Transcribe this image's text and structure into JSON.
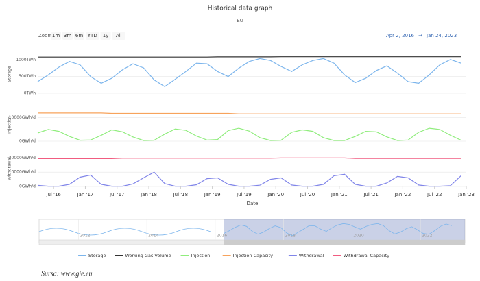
{
  "chart_data": {
    "type": "line",
    "title": "Historical data graph",
    "subtitle": "EU",
    "zoom_label": "Zoom",
    "zoom_buttons": [
      "1m",
      "3m",
      "6m",
      "YTD",
      "1y",
      "All"
    ],
    "range_from": "Apr 2, 2016",
    "range_separator": "→",
    "range_to": "Jan 24, 2023",
    "xlabel": "Date",
    "x": [
      "2016-04",
      "2016-06",
      "2016-08",
      "2016-10",
      "2016-12",
      "2017-02",
      "2017-04",
      "2017-06",
      "2017-08",
      "2017-10",
      "2017-12",
      "2018-02",
      "2018-04",
      "2018-06",
      "2018-08",
      "2018-10",
      "2018-12",
      "2019-02",
      "2019-04",
      "2019-06",
      "2019-08",
      "2019-10",
      "2019-12",
      "2020-02",
      "2020-04",
      "2020-06",
      "2020-08",
      "2020-10",
      "2020-12",
      "2021-02",
      "2021-04",
      "2021-06",
      "2021-08",
      "2021-10",
      "2021-12",
      "2022-02",
      "2022-04",
      "2022-06",
      "2022-08",
      "2022-10",
      "2022-12"
    ],
    "xlim": [
      "2016-04",
      "2023-01"
    ],
    "xticks": [
      {
        "value": "2016-07",
        "label": "Jul '16"
      },
      {
        "value": "2017-01",
        "label": "Jan '17"
      },
      {
        "value": "2017-07",
        "label": "Jul '17"
      },
      {
        "value": "2018-01",
        "label": "Jan '18"
      },
      {
        "value": "2018-07",
        "label": "Jul '18"
      },
      {
        "value": "2019-01",
        "label": "Jan '19"
      },
      {
        "value": "2019-07",
        "label": "Jul '19"
      },
      {
        "value": "2020-01",
        "label": "Jan '20"
      },
      {
        "value": "2020-07",
        "label": "Jul '20"
      },
      {
        "value": "2021-01",
        "label": "Jan '21"
      },
      {
        "value": "2021-07",
        "label": "Jul '21"
      },
      {
        "value": "2022-01",
        "label": "Jan '22"
      },
      {
        "value": "2022-07",
        "label": "Jul '22"
      },
      {
        "value": "2023-01",
        "label": "Jan '23"
      }
    ],
    "panels": [
      {
        "ylabel": "Storage",
        "ylim": [
          0,
          1150
        ],
        "yticks": [
          {
            "value": 0,
            "label": "0TWh"
          },
          {
            "value": 500,
            "label": "500TWh"
          },
          {
            "value": 1000,
            "label": "1000TWh"
          }
        ],
        "series": [
          {
            "name": "Storage",
            "color": "#7cb5ec",
            "values": [
              350,
              550,
              780,
              950,
              850,
              500,
              300,
              450,
              700,
              880,
              760,
              400,
              200,
              420,
              650,
              900,
              880,
              650,
              500,
              750,
              950,
              1040,
              980,
              800,
              650,
              850,
              980,
              1040,
              900,
              550,
              320,
              450,
              680,
              820,
              600,
              350,
              300,
              550,
              850,
              1010,
              900
            ]
          },
          {
            "name": "Working Gas Volume",
            "color": "#333333",
            "values": [
              1085,
              1085,
              1085,
              1085,
              1085,
              1085,
              1085,
              1085,
              1085,
              1085,
              1085,
              1085,
              1085,
              1085,
              1085,
              1085,
              1085,
              1090,
              1090,
              1090,
              1090,
              1090,
              1090,
              1095,
              1095,
              1095,
              1095,
              1095,
              1095,
              1095,
              1095,
              1095,
              1095,
              1095,
              1095,
              1095,
              1095,
              1095,
              1095,
              1095,
              1095
            ]
          }
        ]
      },
      {
        "ylabel": "Injection",
        "ylim": [
          0,
          14000
        ],
        "yticks": [
          {
            "value": 0,
            "label": "0GWh/d"
          },
          {
            "value": 10000,
            "label": "10000GWh/d"
          }
        ],
        "series": [
          {
            "name": "Injection",
            "color": "#90ed7d",
            "values": [
              3500,
              5000,
              4200,
              2000,
              400,
              500,
              2500,
              4800,
              4000,
              1800,
              300,
              400,
              3000,
              5200,
              4600,
              2200,
              500,
              700,
              4500,
              5500,
              4300,
              1500,
              300,
              400,
              3800,
              4800,
              4200,
              1500,
              300,
              300,
              2000,
              4200,
              4000,
              1800,
              300,
              500,
              3800,
              5500,
              5000,
              2500,
              400
            ]
          },
          {
            "name": "Injection Capacity",
            "color": "#f7a35c",
            "values": [
              12000,
              12000,
              12000,
              12000,
              12000,
              12000,
              12000,
              11800,
              11800,
              11800,
              11800,
              11800,
              11800,
              11800,
              11800,
              11800,
              11800,
              11800,
              11800,
              11600,
              11600,
              11600,
              11600,
              11600,
              11600,
              11600,
              11600,
              11600,
              11600,
              11600,
              11600,
              11600,
              11600,
              11600,
              11600,
              11600,
              11600,
              11600,
              11600,
              11600,
              11600
            ]
          }
        ]
      },
      {
        "ylabel": "Withdrawal",
        "ylim": [
          0,
          25000
        ],
        "yticks": [
          {
            "value": 0,
            "label": "0GWh/d"
          },
          {
            "value": 10000,
            "label": "10000GWh/d"
          },
          {
            "value": 20000,
            "label": "20000GWh/d"
          }
        ],
        "series": [
          {
            "name": "Withdrawal",
            "color": "#8085e9",
            "values": [
              800,
              200,
              200,
              1500,
              6500,
              8000,
              1500,
              200,
              200,
              1800,
              6000,
              10000,
              2000,
              200,
              200,
              1200,
              5500,
              6000,
              1500,
              200,
              200,
              900,
              5000,
              6000,
              1000,
              200,
              200,
              1500,
              7500,
              8500,
              1500,
              200,
              200,
              2500,
              7000,
              6000,
              1000,
              200,
              200,
              600,
              7500
            ]
          },
          {
            "name": "Withdrawal Capacity",
            "color": "#f15c80",
            "values": [
              19500,
              19500,
              19500,
              19500,
              19500,
              19500,
              19500,
              19500,
              19800,
              19800,
              19800,
              19800,
              19800,
              19800,
              19800,
              19800,
              19800,
              19800,
              19800,
              19800,
              19800,
              19800,
              19800,
              20000,
              20000,
              20000,
              20000,
              20000,
              20000,
              20000,
              19600,
              19600,
              19600,
              19600,
              19600,
              19600,
              19600,
              19600,
              19600,
              19600,
              19600
            ]
          }
        ]
      }
    ],
    "navigator_ticks": [
      2012,
      2014,
      2016,
      2018,
      2020,
      2022
    ],
    "source": "Sursa: www.gie.eu"
  }
}
